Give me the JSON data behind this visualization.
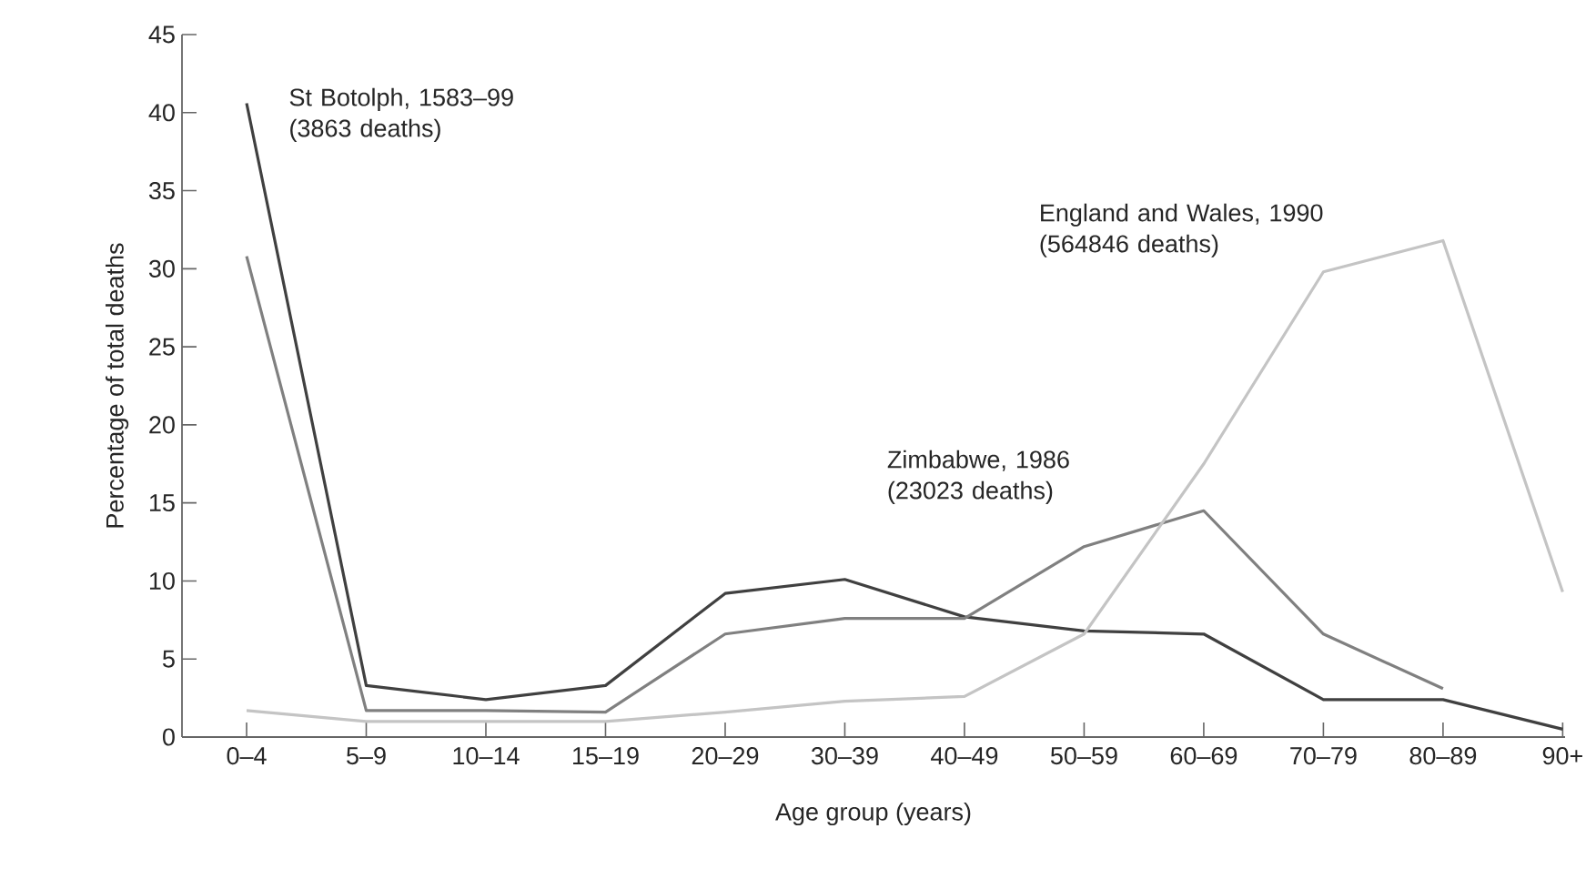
{
  "chart_data": {
    "type": "line",
    "xlabel": "Age group (years)",
    "ylabel": "Percentage of total deaths",
    "categories": [
      "0–4",
      "5–9",
      "10–14",
      "15–19",
      "20–29",
      "30–39",
      "40–49",
      "50–59",
      "60–69",
      "70–79",
      "80–89",
      "90+"
    ],
    "series": [
      {
        "name": "St Botolph, 1583–99 (3863 deaths)",
        "color": "#404040",
        "values": [
          40.6,
          3.3,
          2.4,
          3.3,
          9.2,
          10.1,
          7.7,
          6.8,
          6.6,
          2.4,
          2.4,
          0.5
        ]
      },
      {
        "name": "Zimbabwe, 1986 (23023 deaths)",
        "color": "#808080",
        "values": [
          30.8,
          1.7,
          1.7,
          1.6,
          6.6,
          7.6,
          7.6,
          12.2,
          14.5,
          6.6,
          3.1,
          null
        ]
      },
      {
        "name": "England and Wales, 1990 (564846 deaths)",
        "color": "#c4c4c4",
        "values": [
          1.7,
          1.0,
          1.0,
          1.0,
          1.6,
          2.3,
          2.6,
          6.6,
          17.5,
          29.8,
          31.8,
          9.3
        ]
      }
    ],
    "ylim": [
      0,
      45
    ],
    "yticks": [
      0,
      5,
      10,
      15,
      20,
      25,
      30,
      35,
      40,
      45
    ],
    "grid": false,
    "legend": false,
    "marker": "none",
    "line_style": "solid"
  }
}
